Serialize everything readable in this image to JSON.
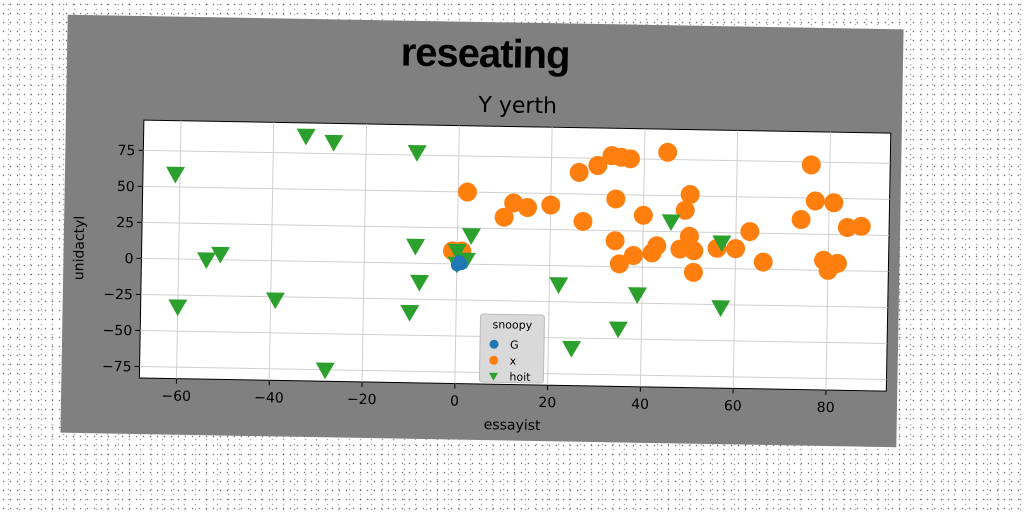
{
  "figure": {
    "supertitle": "reseating"
  },
  "chart_data": {
    "type": "scatter",
    "title": "Y yerth",
    "xlabel": "essayist",
    "ylabel": "unidactyl",
    "xlim": [
      -68,
      93
    ],
    "ylim": [
      -83,
      96
    ],
    "xticks": [
      -60,
      -40,
      -20,
      0,
      20,
      40,
      60,
      80
    ],
    "yticks": [
      -75,
      -50,
      -25,
      0,
      25,
      50,
      75
    ],
    "xtick_labels": [
      "−60",
      "−40",
      "−20",
      "0",
      "20",
      "40",
      "60",
      "80"
    ],
    "ytick_labels": [
      "−75",
      "−50",
      "−25",
      "0",
      "25",
      "50",
      "75"
    ],
    "grid": true,
    "legend": {
      "title": "snoopy",
      "placement": "lower-center"
    },
    "series": [
      {
        "name": "G",
        "marker": "circle",
        "color": "#1f77b4",
        "points": [
          [
            0.5,
            2
          ],
          [
            1,
            0
          ],
          [
            0,
            -1
          ]
        ]
      },
      {
        "name": "x",
        "marker": "circle",
        "color": "#ff7f0e",
        "points": [
          [
            -1,
            9
          ],
          [
            1,
            9
          ],
          [
            2,
            50
          ],
          [
            10,
            33
          ],
          [
            12,
            43
          ],
          [
            15,
            40
          ],
          [
            20,
            42
          ],
          [
            26,
            65
          ],
          [
            27,
            31
          ],
          [
            30,
            70
          ],
          [
            33,
            77
          ],
          [
            35,
            76
          ],
          [
            37,
            75
          ],
          [
            34,
            47
          ],
          [
            34,
            18
          ],
          [
            35,
            2
          ],
          [
            38,
            8
          ],
          [
            40,
            36
          ],
          [
            42,
            10
          ],
          [
            43,
            15
          ],
          [
            45,
            80
          ],
          [
            48,
            13
          ],
          [
            49,
            40
          ],
          [
            50,
            51
          ],
          [
            50,
            22
          ],
          [
            51,
            12
          ],
          [
            51,
            -3
          ],
          [
            56,
            14
          ],
          [
            60,
            14
          ],
          [
            63,
            26
          ],
          [
            66,
            5
          ],
          [
            74,
            35
          ],
          [
            76,
            73
          ],
          [
            77,
            48
          ],
          [
            79,
            7
          ],
          [
            80,
            0
          ],
          [
            81,
            47
          ],
          [
            82,
            5
          ],
          [
            84,
            30
          ],
          [
            87,
            31
          ]
        ]
      },
      {
        "name": "hoit",
        "marker": "triangle-down",
        "color": "#2ca02c",
        "points": [
          [
            -61,
            59
          ],
          [
            -60,
            -33
          ],
          [
            -54,
            0
          ],
          [
            -51,
            4
          ],
          [
            -39,
            -27
          ],
          [
            -33,
            87
          ],
          [
            -27,
            83
          ],
          [
            -28,
            -75
          ],
          [
            -10,
            -34
          ],
          [
            -9,
            77
          ],
          [
            -9,
            12
          ],
          [
            -8,
            -13
          ],
          [
            0,
            9
          ],
          [
            0,
            0
          ],
          [
            2,
            3
          ],
          [
            3,
            20
          ],
          [
            14,
            -41
          ],
          [
            22,
            -13
          ],
          [
            25,
            -57
          ],
          [
            35,
            -43
          ],
          [
            39,
            -19
          ],
          [
            46,
            32
          ],
          [
            57,
            18
          ],
          [
            57,
            -27
          ]
        ]
      }
    ]
  }
}
